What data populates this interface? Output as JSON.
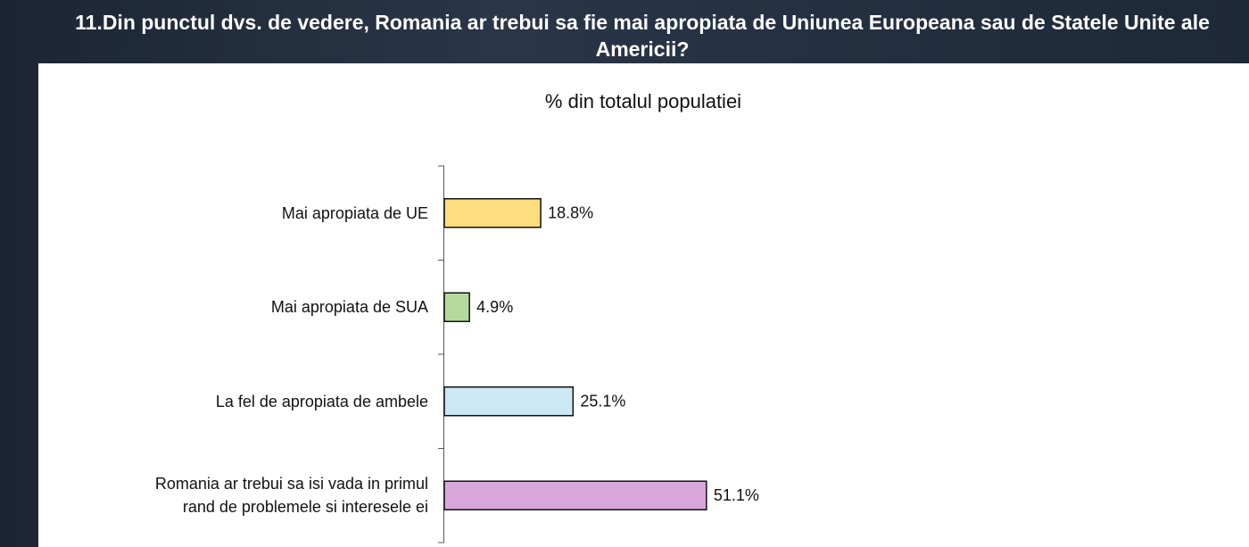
{
  "chart_data": {
    "type": "bar",
    "orientation": "horizontal",
    "title": "11.Din punctul dvs. de vedere, Romania ar trebui sa fie mai apropiata de Uniunea Europeana sau de Statele Unite ale Americii?",
    "subtitle": "% din totalul populatiei",
    "categories": [
      "Mai apropiata de UE",
      "Mai apropiata de SUA",
      "La fel de apropiata de ambele",
      "Romania ar trebui sa isi vada in primul rand de problemele si interesele ei"
    ],
    "values": [
      18.8,
      4.9,
      25.1,
      51.1
    ],
    "value_labels": [
      "18.8%",
      "4.9%",
      "25.1%",
      "51.1%"
    ],
    "colors": [
      "#fedd7f",
      "#b5d99c",
      "#cce8f4",
      "#d9a6dc"
    ]
  }
}
